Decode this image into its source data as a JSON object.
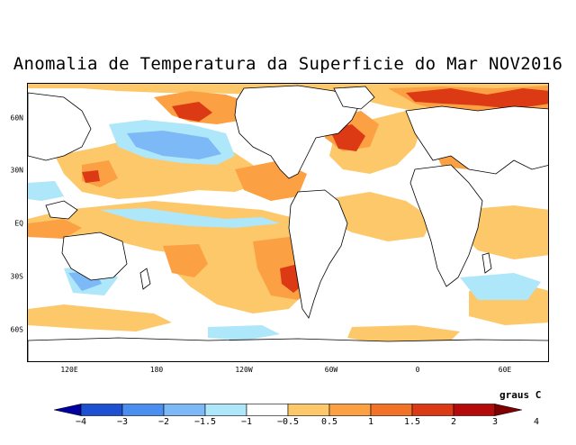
{
  "title": "Anomalia de Temperatura da Superficie do Mar NOV2016",
  "units": "graus C",
  "lat_labels": [
    "60N",
    "30N",
    "EQ",
    "30S",
    "60S"
  ],
  "lon_labels": [
    "120E",
    "180",
    "120W",
    "60W",
    "0",
    "60E"
  ],
  "colorbar": {
    "labels": [
      "−4",
      "−3",
      "−2",
      "−1.5",
      "−1",
      "−0.5",
      "0.5",
      "1",
      "1.5",
      "2",
      "3",
      "4"
    ],
    "colors": [
      "#0000a0",
      "#1e50d2",
      "#4a8ef0",
      "#7cb9f6",
      "#aee6fa",
      "#ffffff",
      "#fcc86a",
      "#fca044",
      "#f27328",
      "#dc3a14",
      "#b40a0a",
      "#800000"
    ]
  },
  "palette": {
    "warm_light": "#fcc86a",
    "warm_mid": "#fca044",
    "warm_strong": "#f27328",
    "hot": "#dc3a14",
    "very_hot": "#b40a0a",
    "cool_light": "#aee6fa",
    "cool_mid": "#7cb9f6",
    "cool_strong": "#4a8ef0"
  }
}
